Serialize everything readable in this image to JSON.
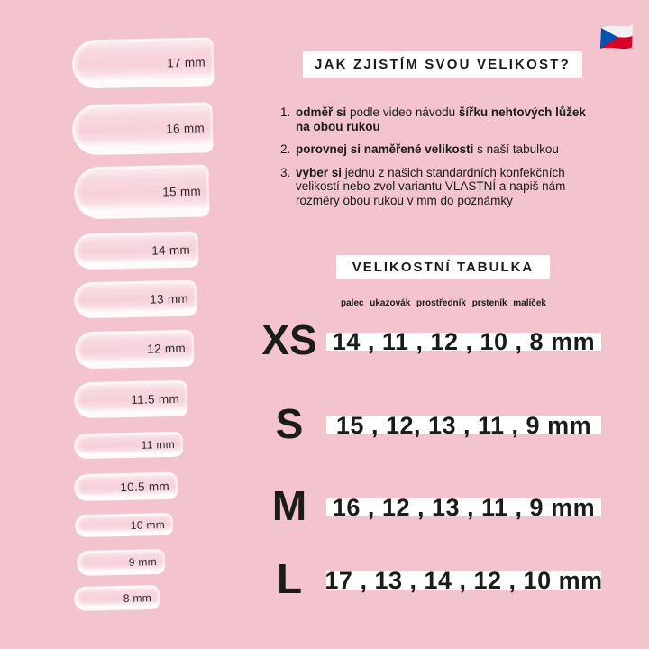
{
  "page": {
    "title": "JAK ZJISTÍM SVOU VELIKOST?",
    "table_title": "VELIKOSTNÍ TABULKA"
  },
  "instructions": [
    {
      "number": "1.",
      "segments": [
        {
          "text": "odměř si",
          "bold": true
        },
        {
          "text": " podle video návodu ",
          "bold": false
        },
        {
          "text": "šířku nehtových lůžek\nna obou rukou",
          "bold": true
        }
      ]
    },
    {
      "number": "2.",
      "segments": [
        {
          "text": "porovnej si naměřené velikosti",
          "bold": true
        },
        {
          "text": " s naší tabulkou",
          "bold": false
        }
      ]
    },
    {
      "number": "3.",
      "segments": [
        {
          "text": "vyber si",
          "bold": true
        },
        {
          "text": " jednu z našich standardních konfekčních\nvelikostí nebo zvol variantu VLASTNÍ a napiš nám\nrozměry obou rukou v mm do poznámky",
          "bold": false
        }
      ]
    }
  ],
  "size_table": {
    "finger_labels": [
      "palec",
      "ukazovák",
      "prostředník",
      "prsteník",
      "malíček"
    ],
    "rows": [
      {
        "size": "XS",
        "values_display": "14 , 11 , 12 , 10 , 8 mm",
        "values_mm": [
          14,
          11,
          12,
          10,
          8
        ]
      },
      {
        "size": "S",
        "values_display": "15 , 12, 13 , 11 , 9 mm",
        "values_mm": [
          15,
          12,
          13,
          11,
          9
        ]
      },
      {
        "size": "M",
        "values_display": "16 , 12 , 13 , 11 , 9 mm",
        "values_mm": [
          16,
          12,
          13,
          11,
          9
        ]
      },
      {
        "size": "L",
        "values_display": "17 , 13 , 14 , 12 , 10 mm",
        "values_mm": [
          17,
          13,
          14,
          12,
          10
        ]
      }
    ]
  },
  "nail_chart": {
    "labels": [
      "17 mm",
      "16 mm",
      "15 mm",
      "14 mm",
      "13 mm",
      "12 mm",
      "11.5 mm",
      "11 mm",
      "10.5 mm",
      "10 mm",
      "9 mm",
      "8 mm"
    ]
  },
  "flag": {
    "country": "Česká republika"
  },
  "colors": {
    "background": "#f3c4ce",
    "panel": "#ffffff",
    "text": "#1b1b19",
    "flag_white": "#f2f2f2",
    "flag_red": "#d80027",
    "flag_blue": "#0052b4"
  }
}
